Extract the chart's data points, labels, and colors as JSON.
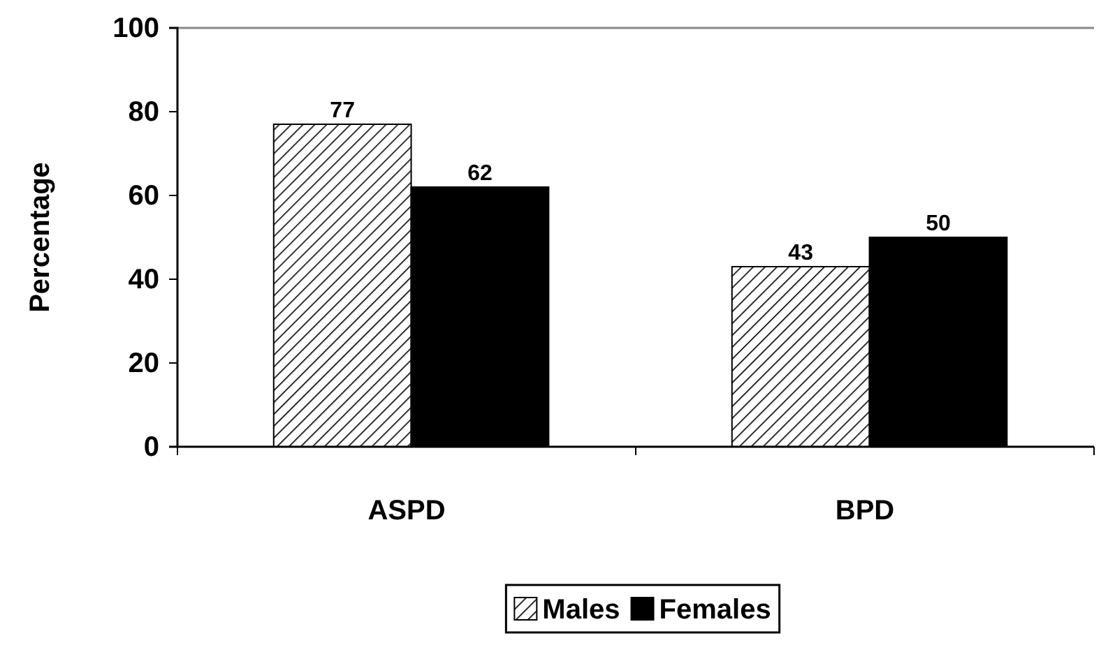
{
  "chart_data": {
    "type": "bar",
    "ylabel": "Percentage",
    "categories": [
      "ASPD",
      "BPD"
    ],
    "series": [
      {
        "name": "Males",
        "color": "#000000",
        "values": [
          77,
          43
        ]
      },
      {
        "name": "Females",
        "color": "#000000",
        "values": [
          62,
          50
        ]
      }
    ],
    "ylim": [
      0,
      100
    ],
    "yticks": [
      0,
      20,
      40,
      60,
      80,
      100
    ],
    "grid": false,
    "legend": "bottom",
    "data_labels": true
  }
}
